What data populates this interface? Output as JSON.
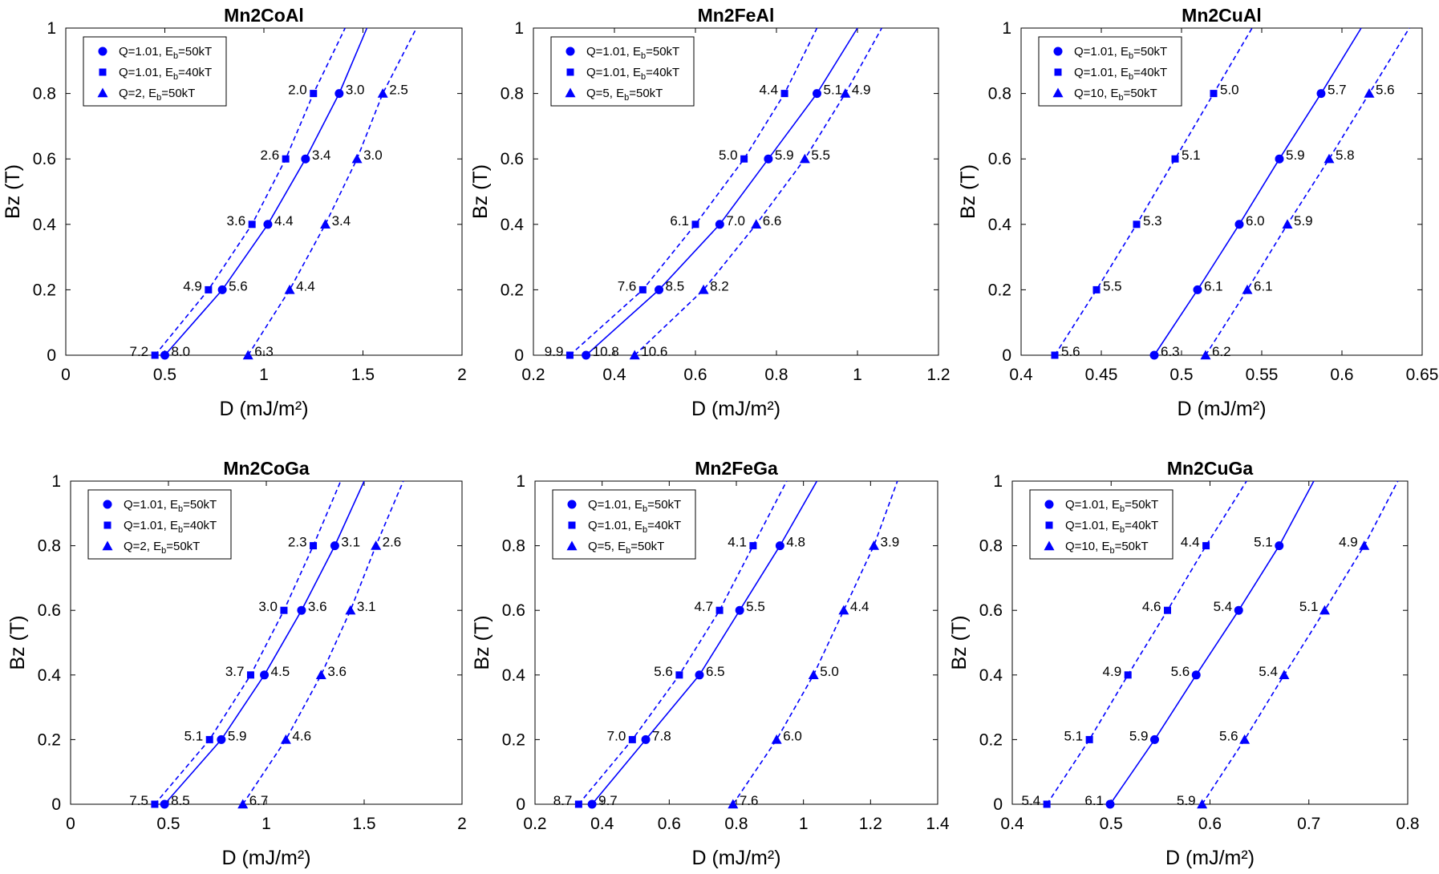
{
  "style": {
    "series_color": "#0000ff",
    "axis_color": "#000000"
  },
  "chart_data": [
    {
      "type": "line",
      "title": "Mn2CoAl",
      "xlabel": "D (mJ/m²)",
      "ylabel": "Bz (T)",
      "xlim": [
        0,
        2
      ],
      "ylim": [
        0,
        1
      ],
      "xticks": [
        0,
        0.5,
        1,
        1.5,
        2
      ],
      "xtick_labels": [
        "0",
        "0.5",
        "1",
        "1.5",
        "2"
      ],
      "yticks": [
        0,
        0.2,
        0.4,
        0.6,
        0.8,
        1
      ],
      "ytick_labels": [
        "0",
        "0.2",
        "0.4",
        "0.6",
        "0.8",
        "1"
      ],
      "legend_position": "top-left",
      "series": [
        {
          "legend_main": "Q=1.01, E",
          "legend_sub": "b",
          "legend_tail": "=50kT",
          "marker": "circle",
          "line": "solid",
          "x": [
            0.5,
            0.79,
            1.02,
            1.21,
            1.38
          ],
          "y": [
            0,
            0.2,
            0.4,
            0.6,
            0.8
          ],
          "labels": [
            "8.0",
            "5.6",
            "4.4",
            "3.4",
            "3.0"
          ],
          "label_side": "right",
          "x_end": 1.52
        },
        {
          "legend_main": "Q=1.01, E",
          "legend_sub": "b",
          "legend_tail": "=40kT",
          "marker": "square",
          "line": "dashed",
          "x": [
            0.45,
            0.72,
            0.94,
            1.11,
            1.25
          ],
          "y": [
            0,
            0.2,
            0.4,
            0.6,
            0.8
          ],
          "labels": [
            "7.2",
            "4.9",
            "3.6",
            "2.6",
            "2.0"
          ],
          "label_side": "left",
          "x_end": 1.41
        },
        {
          "legend_main": "Q=2, E",
          "legend_sub": "b",
          "legend_tail": "=50kT",
          "marker": "triangle",
          "line": "dashed",
          "x": [
            0.92,
            1.13,
            1.31,
            1.47,
            1.6
          ],
          "y": [
            0,
            0.2,
            0.4,
            0.6,
            0.8
          ],
          "labels": [
            "6.3",
            "4.4",
            "3.4",
            "3.0",
            "2.5"
          ],
          "label_side": "right",
          "x_end": 1.77
        }
      ]
    },
    {
      "type": "line",
      "title": "Mn2FeAl",
      "xlabel": "D (mJ/m²)",
      "ylabel": "Bz (T)",
      "xlim": [
        0.2,
        1.2
      ],
      "ylim": [
        0,
        1
      ],
      "xticks": [
        0.2,
        0.4,
        0.6,
        0.8,
        1,
        1.2
      ],
      "xtick_labels": [
        "0.2",
        "0.4",
        "0.6",
        "0.8",
        "1",
        "1.2"
      ],
      "yticks": [
        0,
        0.2,
        0.4,
        0.6,
        0.8,
        1
      ],
      "ytick_labels": [
        "0",
        "0.2",
        "0.4",
        "0.6",
        "0.8",
        "1"
      ],
      "legend_position": "top-left",
      "series": [
        {
          "legend_main": "Q=1.01, E",
          "legend_sub": "b",
          "legend_tail": "=50kT",
          "marker": "circle",
          "line": "solid",
          "x": [
            0.33,
            0.51,
            0.66,
            0.78,
            0.9
          ],
          "y": [
            0,
            0.2,
            0.4,
            0.6,
            0.8
          ],
          "labels": [
            "10.8",
            "8.5",
            "7.0",
            "5.9",
            "5.1"
          ],
          "label_side": "right",
          "x_end": 1.0
        },
        {
          "legend_main": "Q=1.01, E",
          "legend_sub": "b",
          "legend_tail": "=40kT",
          "marker": "square",
          "line": "dashed",
          "x": [
            0.29,
            0.47,
            0.6,
            0.72,
            0.82
          ],
          "y": [
            0,
            0.2,
            0.4,
            0.6,
            0.8
          ],
          "labels": [
            "9.9",
            "7.6",
            "6.1",
            "5.0",
            "4.4"
          ],
          "label_side": "left",
          "x_end": 0.9
        },
        {
          "legend_main": "Q=5, E",
          "legend_sub": "b",
          "legend_tail": "=50kT",
          "marker": "triangle",
          "line": "dashed",
          "x": [
            0.45,
            0.62,
            0.75,
            0.87,
            0.97
          ],
          "y": [
            0,
            0.2,
            0.4,
            0.6,
            0.8
          ],
          "labels": [
            "10.6",
            "8.2",
            "6.6",
            "5.5",
            "4.9"
          ],
          "label_side": "right",
          "x_end": 1.06
        }
      ]
    },
    {
      "type": "line",
      "title": "Mn2CuAl",
      "xlabel": "D (mJ/m²)",
      "ylabel": "Bz (T)",
      "xlim": [
        0.4,
        0.65
      ],
      "ylim": [
        0,
        1
      ],
      "xticks": [
        0.4,
        0.45,
        0.5,
        0.55,
        0.6,
        0.65
      ],
      "xtick_labels": [
        "0.4",
        "0.45",
        "0.5",
        "0.55",
        "0.6",
        "0.65"
      ],
      "yticks": [
        0,
        0.2,
        0.4,
        0.6,
        0.8,
        1
      ],
      "ytick_labels": [
        "0",
        "0.2",
        "0.4",
        "0.6",
        "0.8",
        "1"
      ],
      "legend_position": "top-left",
      "series": [
        {
          "legend_main": "Q=1.01, E",
          "legend_sub": "b",
          "legend_tail": "=50kT",
          "marker": "circle",
          "line": "solid",
          "x": [
            0.483,
            0.51,
            0.536,
            0.561,
            0.587
          ],
          "y": [
            0,
            0.2,
            0.4,
            0.6,
            0.8
          ],
          "labels": [
            "6.3",
            "6.1",
            "6.0",
            "5.9",
            "5.7"
          ],
          "label_side": "right",
          "x_end": 0.612
        },
        {
          "legend_main": "Q=1.01, E",
          "legend_sub": "b",
          "legend_tail": "=40kT",
          "marker": "square",
          "line": "dashed",
          "x": [
            0.421,
            0.447,
            0.472,
            0.496,
            0.52
          ],
          "y": [
            0,
            0.2,
            0.4,
            0.6,
            0.8
          ],
          "labels": [
            "5.6",
            "5.5",
            "5.3",
            "5.1",
            "5.0"
          ],
          "label_side": "right",
          "x_end": 0.544
        },
        {
          "legend_main": "Q=10, E",
          "legend_sub": "b",
          "legend_tail": "=50kT",
          "marker": "triangle",
          "line": "dashed",
          "x": [
            0.515,
            0.541,
            0.566,
            0.592,
            0.617
          ],
          "y": [
            0,
            0.2,
            0.4,
            0.6,
            0.8
          ],
          "labels": [
            "6.2",
            "6.1",
            "5.9",
            "5.8",
            "5.6"
          ],
          "label_side": "right",
          "x_end": 0.642
        }
      ]
    },
    {
      "type": "line",
      "title": "Mn2CoGa",
      "xlabel": "D (mJ/m²)",
      "ylabel": "Bz (T)",
      "xlim": [
        0,
        2
      ],
      "ylim": [
        0,
        1
      ],
      "xticks": [
        0,
        0.5,
        1,
        1.5,
        2
      ],
      "xtick_labels": [
        "0",
        "0.5",
        "1",
        "1.5",
        "2"
      ],
      "yticks": [
        0,
        0.2,
        0.4,
        0.6,
        0.8,
        1
      ],
      "ytick_labels": [
        "0",
        "0.2",
        "0.4",
        "0.6",
        "0.8",
        "1"
      ],
      "legend_position": "top-left",
      "series": [
        {
          "legend_main": "Q=1.01, E",
          "legend_sub": "b",
          "legend_tail": "=50kT",
          "marker": "circle",
          "line": "solid",
          "x": [
            0.48,
            0.77,
            0.99,
            1.18,
            1.35
          ],
          "y": [
            0,
            0.2,
            0.4,
            0.6,
            0.8
          ],
          "labels": [
            "8.5",
            "5.9",
            "4.5",
            "3.6",
            "3.1"
          ],
          "label_side": "right",
          "x_end": 1.5
        },
        {
          "legend_main": "Q=1.01, E",
          "legend_sub": "b",
          "legend_tail": "=40kT",
          "marker": "square",
          "line": "dashed",
          "x": [
            0.43,
            0.71,
            0.92,
            1.09,
            1.24
          ],
          "y": [
            0,
            0.2,
            0.4,
            0.6,
            0.8
          ],
          "labels": [
            "7.5",
            "5.1",
            "3.7",
            "3.0",
            "2.3"
          ],
          "label_side": "left",
          "x_end": 1.38
        },
        {
          "legend_main": "Q=2, E",
          "legend_sub": "b",
          "legend_tail": "=50kT",
          "marker": "triangle",
          "line": "dashed",
          "x": [
            0.88,
            1.1,
            1.28,
            1.43,
            1.56
          ],
          "y": [
            0,
            0.2,
            0.4,
            0.6,
            0.8
          ],
          "labels": [
            "6.7",
            "4.6",
            "3.6",
            "3.1",
            "2.6"
          ],
          "label_side": "right",
          "x_end": 1.7
        }
      ]
    },
    {
      "type": "line",
      "title": "Mn2FeGa",
      "xlabel": "D (mJ/m²)",
      "ylabel": "Bz (T)",
      "xlim": [
        0.2,
        1.4
      ],
      "ylim": [
        0,
        1
      ],
      "xticks": [
        0.2,
        0.4,
        0.6,
        0.8,
        1,
        1.2,
        1.4
      ],
      "xtick_labels": [
        "0.2",
        "0.4",
        "0.6",
        "0.8",
        "1",
        "1.2",
        "1.4"
      ],
      "yticks": [
        0,
        0.2,
        0.4,
        0.6,
        0.8,
        1
      ],
      "ytick_labels": [
        "0",
        "0.2",
        "0.4",
        "0.6",
        "0.8",
        "1"
      ],
      "legend_position": "top-left",
      "series": [
        {
          "legend_main": "Q=1.01, E",
          "legend_sub": "b",
          "legend_tail": "=50kT",
          "marker": "circle",
          "line": "solid",
          "x": [
            0.37,
            0.53,
            0.69,
            0.81,
            0.93
          ],
          "y": [
            0,
            0.2,
            0.4,
            0.6,
            0.8
          ],
          "labels": [
            "9.7",
            "7.8",
            "6.5",
            "5.5",
            "4.8"
          ],
          "label_side": "right",
          "x_end": 1.04
        },
        {
          "legend_main": "Q=1.01, E",
          "legend_sub": "b",
          "legend_tail": "=40kT",
          "marker": "square",
          "line": "dashed",
          "x": [
            0.33,
            0.49,
            0.63,
            0.75,
            0.85
          ],
          "y": [
            0,
            0.2,
            0.4,
            0.6,
            0.8
          ],
          "labels": [
            "8.7",
            "7.0",
            "5.6",
            "4.7",
            "4.1"
          ],
          "label_side": "left",
          "x_end": 0.95
        },
        {
          "legend_main": "Q=5, E",
          "legend_sub": "b",
          "legend_tail": "=50kT",
          "marker": "triangle",
          "line": "dashed",
          "x": [
            0.79,
            0.92,
            1.03,
            1.12,
            1.21
          ],
          "y": [
            0,
            0.2,
            0.4,
            0.6,
            0.8
          ],
          "labels": [
            "7.6",
            "6.0",
            "5.0",
            "4.4",
            "3.9"
          ],
          "label_side": "right",
          "x_end": 1.28
        }
      ]
    },
    {
      "type": "line",
      "title": "Mn2CuGa",
      "xlabel": "D (mJ/m²)",
      "ylabel": "Bz (T)",
      "xlim": [
        0.4,
        0.8
      ],
      "ylim": [
        0,
        1
      ],
      "xticks": [
        0.4,
        0.5,
        0.6,
        0.7,
        0.8
      ],
      "xtick_labels": [
        "0.4",
        "0.5",
        "0.6",
        "0.7",
        "0.8"
      ],
      "yticks": [
        0,
        0.2,
        0.4,
        0.6,
        0.8,
        1
      ],
      "ytick_labels": [
        "0",
        "0.2",
        "0.4",
        "0.6",
        "0.8",
        "1"
      ],
      "legend_position": "top-left",
      "series": [
        {
          "legend_main": "Q=1.01, E",
          "legend_sub": "b",
          "legend_tail": "=50kT",
          "marker": "circle",
          "line": "solid",
          "x": [
            0.499,
            0.544,
            0.586,
            0.629,
            0.67
          ],
          "y": [
            0,
            0.2,
            0.4,
            0.6,
            0.8
          ],
          "labels": [
            "6.1",
            "5.9",
            "5.6",
            "5.4",
            "5.1"
          ],
          "label_side": "left",
          "x_end": 0.705
        },
        {
          "legend_main": "Q=1.01, E",
          "legend_sub": "b",
          "legend_tail": "=40kT",
          "marker": "square",
          "line": "dashed",
          "x": [
            0.435,
            0.478,
            0.517,
            0.557,
            0.596
          ],
          "y": [
            0,
            0.2,
            0.4,
            0.6,
            0.8
          ],
          "labels": [
            "5.4",
            "5.1",
            "4.9",
            "4.6",
            "4.4"
          ],
          "label_side": "left",
          "x_end": 0.637
        },
        {
          "legend_main": "Q=10, E",
          "legend_sub": "b",
          "legend_tail": "=50kT",
          "marker": "triangle",
          "line": "dashed",
          "x": [
            0.592,
            0.635,
            0.675,
            0.716,
            0.756
          ],
          "y": [
            0,
            0.2,
            0.4,
            0.6,
            0.8
          ],
          "labels": [
            "5.9",
            "5.6",
            "5.4",
            "5.1",
            "4.9"
          ],
          "label_side": "left",
          "x_end": 0.79
        }
      ]
    }
  ]
}
